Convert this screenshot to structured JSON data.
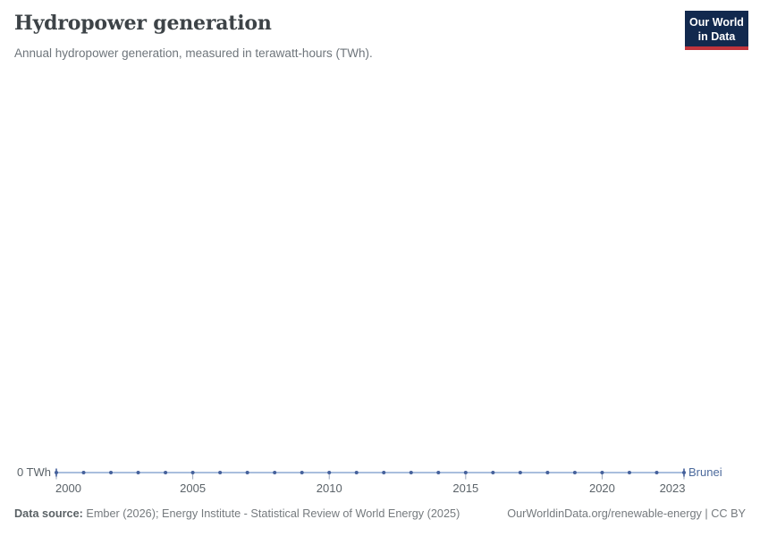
{
  "header": {
    "title": "Hydropower generation",
    "subtitle": "Annual hydropower generation, measured in terawatt-hours (TWh).",
    "logo": {
      "line1": "Our World",
      "line2": "in Data"
    }
  },
  "chart_data": {
    "type": "line",
    "title": "Hydropower generation",
    "subtitle": "Annual hydropower generation, measured in terawatt-hours (TWh).",
    "entity_label": "Brunei",
    "x": [
      2000,
      2001,
      2002,
      2003,
      2004,
      2005,
      2006,
      2007,
      2008,
      2009,
      2010,
      2011,
      2012,
      2013,
      2014,
      2015,
      2016,
      2017,
      2018,
      2019,
      2020,
      2021,
      2022,
      2023
    ],
    "series": [
      {
        "name": "Brunei",
        "values": [
          0,
          0,
          0,
          0,
          0,
          0,
          0,
          0,
          0,
          0,
          0,
          0,
          0,
          0,
          0,
          0,
          0,
          0,
          0,
          0,
          0,
          0,
          0,
          0
        ]
      }
    ],
    "xlabel": "",
    "ylabel": "",
    "xlim": [
      2000,
      2023
    ],
    "ylim": [
      0,
      0
    ],
    "x_ticks": [
      2000,
      2005,
      2010,
      2015,
      2020,
      2023
    ],
    "y_tick_label": "0 TWh",
    "grid": false,
    "legend_position": "end-of-line",
    "unit": "TWh",
    "colors": {
      "line": "#a9bedd",
      "marker": "#45619b",
      "entity_text": "#4c6a9c",
      "axis_tick": "#9aa6bb",
      "axis_text": "#5b6369"
    }
  },
  "footer": {
    "source_label": "Data source:",
    "source_text": " Ember (2026); Energy Institute - Statistical Review of World Energy (2025)",
    "link_text": "OurWorldinData.org/renewable-energy | CC BY"
  }
}
